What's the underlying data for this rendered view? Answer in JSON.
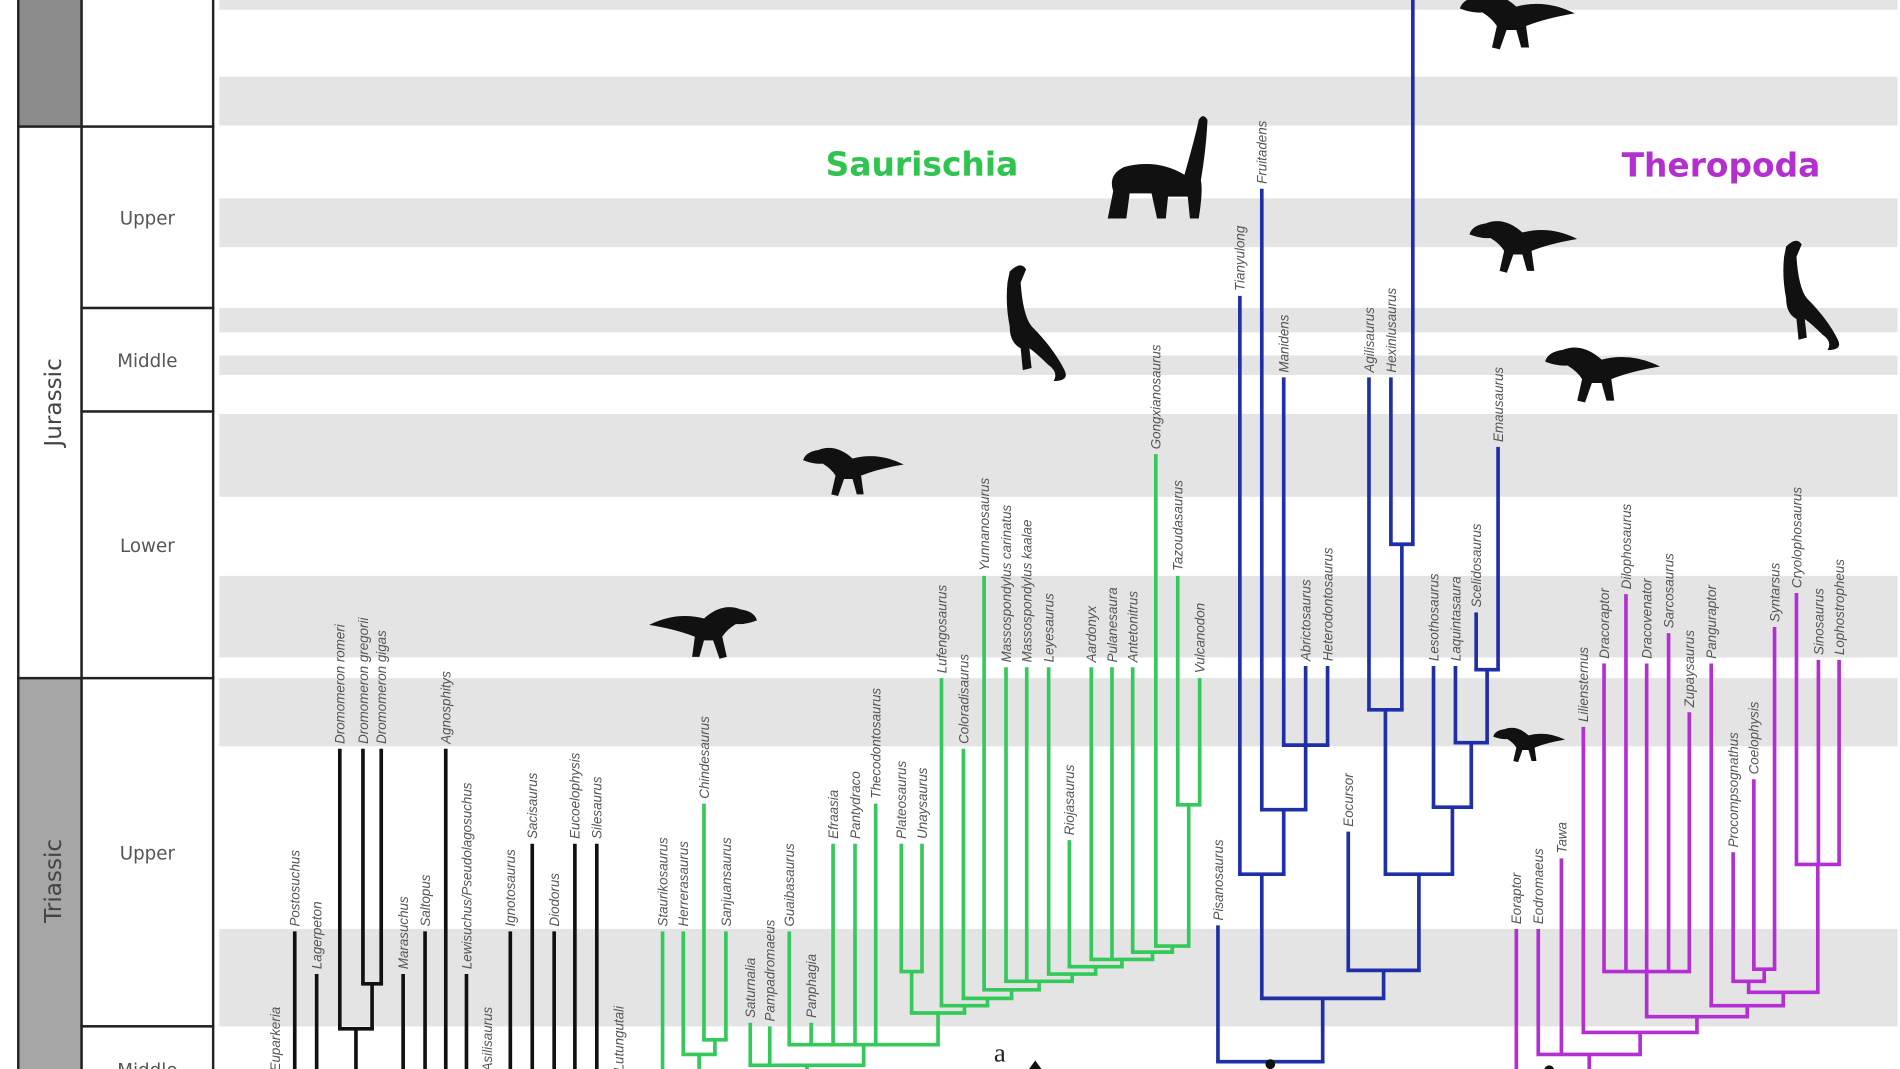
{
  "timescale": {
    "periods": [
      {
        "label": "",
        "fill": "#8c8c8c"
      },
      {
        "label": "Jurassic",
        "fill": "#ffffff"
      },
      {
        "label": "Triassic",
        "fill": "#a6a6a6"
      }
    ],
    "epochs": [
      "",
      "Upper",
      "Middle",
      "Lower",
      "Upper",
      "Middle"
    ]
  },
  "clades": {
    "saurischia": {
      "label": "Saurischia",
      "color": "#2ec44f"
    },
    "theropoda": {
      "label": "Theropoda",
      "color": "#b42fd0"
    }
  },
  "node_label": "a",
  "colors": {
    "outgroup": "#111111",
    "saurischia_lines": "#35c85a",
    "ornithischia_lines": "#1f2fa8",
    "theropoda_lines": "#b32fd4",
    "band": "#e4e4e4"
  },
  "taxa": {
    "outgroup": [
      "Euparkeria",
      "Postosuchus",
      "Lagerpeton",
      "Dromomeron romeri",
      "Dromomeron gregorii",
      "Dromomeron gigas",
      "Marasuchus",
      "Saltopus",
      "Agnosphitys",
      "Lewisuchus/Pseudolagosuchus",
      "Asilisaurus",
      "Ignotosaurus",
      "Sacisaurus",
      "Diodorus",
      "Eucoelophysis",
      "Silesaurus",
      "Lutungutali"
    ],
    "green": [
      "Staurikosaurus",
      "Herrerasaurus",
      "Chindesaurus",
      "Sanjuansaurus",
      "Saturnalia",
      "Pampadromaeus",
      "Guaibasaurus",
      "Panphagia",
      "Efraasia",
      "Pantydraco",
      "Thecodontosaurus",
      "Plateosaurus",
      "Unaysaurus",
      "Lufengosaurus",
      "Coloradisaurus",
      "Yunnanosaurus",
      "Massospondylus carinatus",
      "Massospondylus kaalae",
      "Leyesaurus",
      "Riojasaurus",
      "Aardonyx",
      "Pulanesaura",
      "Antetonitrus",
      "Gongxianosaurus",
      "Tazoudasaurus",
      "Vulcanodon"
    ],
    "blue": [
      "Pisanosaurus",
      "Tianyulong",
      "Fruitadens",
      "Manidens",
      "Abrictosaurus",
      "Heterodontosaurus",
      "Eocursor",
      "Agilisaurus",
      "Hexinlusaurus",
      "",
      "Lesothosaurus",
      "Laquintasaura",
      "Scelidosaurus",
      "Emausaurus"
    ],
    "magenta": [
      "Eoraptor",
      "Eodromaeus",
      "Tawa",
      "Liliensternus",
      "Dracoraptor",
      "Dilophosaurus",
      "Dracovenator",
      "Sarcosaurus",
      "Zupaysaurus",
      "Panguraptor",
      "Procompsognathus",
      "Coelophysis",
      "Syntarsus",
      "Cryolophosaurus",
      "Sinosaurus",
      "Lophostropheus"
    ]
  },
  "silhouettes": [
    "tyrannosaur-silhouette",
    "prosauropod-silhouette",
    "plateosaur-silhouette",
    "sauropod-silhouette",
    "theropod-silhouette",
    "theropod-silhouette",
    "theropod-silhouette",
    "coelophysoid-silhouette",
    "heterodontosaur-silhouette"
  ]
}
